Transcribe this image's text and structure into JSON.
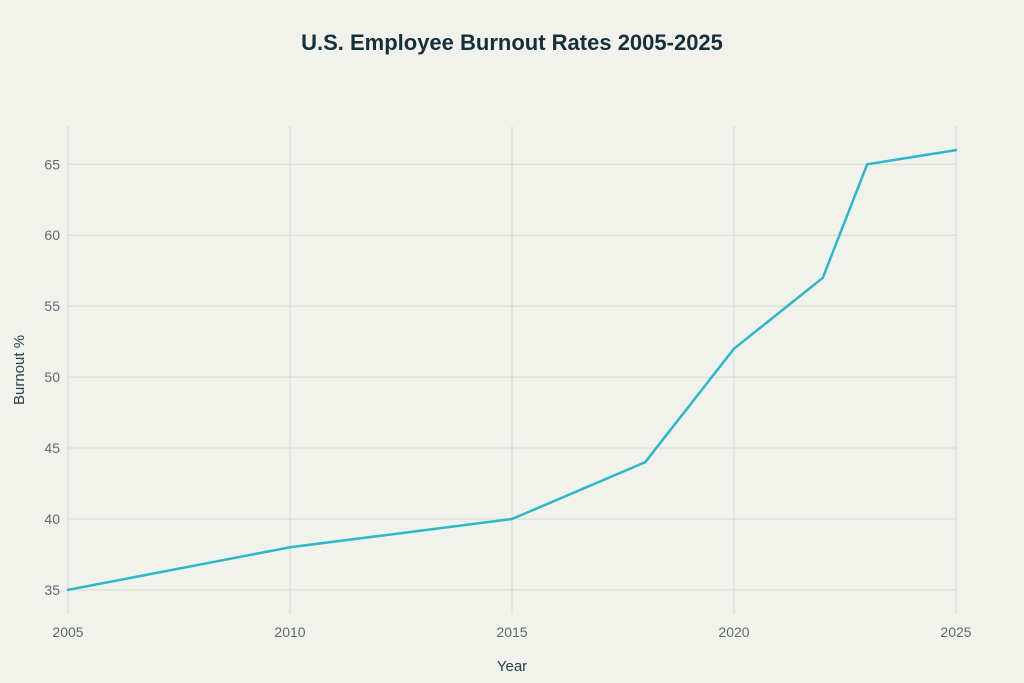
{
  "chart_data": {
    "type": "line",
    "title": "U.S. Employee Burnout Rates 2005-2025",
    "xlabel": "Year",
    "ylabel": "Burnout %",
    "xlim": [
      2005,
      2025
    ],
    "ylim": [
      33.3,
      67.7
    ],
    "x_ticks": [
      2005,
      2010,
      2015,
      2020,
      2025
    ],
    "y_ticks": [
      35,
      40,
      45,
      50,
      55,
      60,
      65
    ],
    "grid": true,
    "legend": "none",
    "series": [
      {
        "color": "#2db7c9",
        "points": [
          {
            "x": 2005,
            "y": 35
          },
          {
            "x": 2010,
            "y": 38
          },
          {
            "x": 2015,
            "y": 40
          },
          {
            "x": 2018,
            "y": 44
          },
          {
            "x": 2020,
            "y": 52
          },
          {
            "x": 2022,
            "y": 57
          },
          {
            "x": 2023,
            "y": 65
          },
          {
            "x": 2025,
            "y": 66
          }
        ]
      }
    ]
  }
}
